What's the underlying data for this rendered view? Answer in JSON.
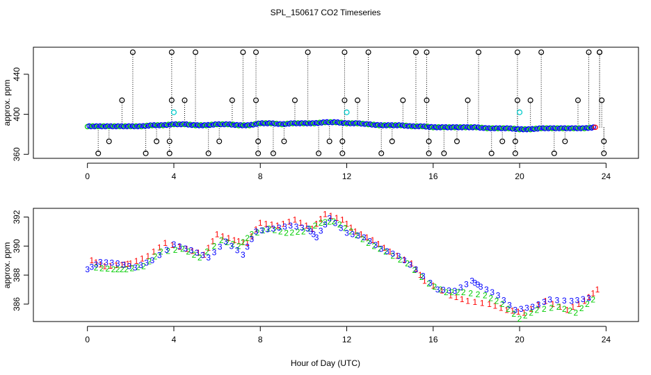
{
  "chart_data": {
    "title": "SPL_150617  CO2 Timeseries",
    "xlabel": "Hour of Day (UTC)",
    "colors": {
      "c1": "#ff0000",
      "c2": "#00cc00",
      "c3": "#0000ff",
      "open_circle": "#000000",
      "cyan_point": "#00cccc"
    },
    "panels": [
      {
        "type": "scatter",
        "ylabel": "approx. ppm",
        "xlim": [
          -2.5,
          25.5
        ],
        "ylim": [
          356,
          467
        ],
        "xticks": [
          "0",
          "4",
          "8",
          "12",
          "16",
          "20",
          "24"
        ],
        "yticks": [
          "360",
          "400",
          "440"
        ],
        "grid": false,
        "series_main": [
          [
            0.0,
            388
          ],
          [
            0.5,
            388
          ],
          [
            1.0,
            388
          ],
          [
            1.5,
            388
          ],
          [
            2.0,
            388
          ],
          [
            2.5,
            388
          ],
          [
            3.0,
            389
          ],
          [
            3.5,
            389
          ],
          [
            4.0,
            390
          ],
          [
            4.5,
            390
          ],
          [
            5.0,
            389
          ],
          [
            5.5,
            389
          ],
          [
            6.0,
            390
          ],
          [
            6.5,
            390
          ],
          [
            7.0,
            389
          ],
          [
            7.5,
            389
          ],
          [
            8.0,
            391
          ],
          [
            8.5,
            391
          ],
          [
            9.0,
            390
          ],
          [
            9.5,
            391
          ],
          [
            10.0,
            391
          ],
          [
            10.5,
            391
          ],
          [
            11.0,
            392
          ],
          [
            11.5,
            392
          ],
          [
            12.0,
            391
          ],
          [
            12.5,
            391
          ],
          [
            13.0,
            390
          ],
          [
            13.5,
            389
          ],
          [
            14.0,
            389
          ],
          [
            14.5,
            389
          ],
          [
            15.0,
            388
          ],
          [
            15.5,
            388
          ],
          [
            16.0,
            387
          ],
          [
            16.5,
            387
          ],
          [
            17.0,
            387
          ],
          [
            17.5,
            387
          ],
          [
            18.0,
            387
          ],
          [
            18.5,
            386
          ],
          [
            19.0,
            386
          ],
          [
            19.5,
            386
          ],
          [
            20.0,
            385
          ],
          [
            20.5,
            385
          ],
          [
            21.0,
            386
          ],
          [
            21.5,
            386
          ],
          [
            22.0,
            386
          ],
          [
            22.5,
            386
          ],
          [
            23.0,
            386
          ],
          [
            23.5,
            387
          ]
        ],
        "outliers": [
          [
            0.5,
            361
          ],
          [
            1.0,
            373
          ],
          [
            1.6,
            414
          ],
          [
            2.1,
            462
          ],
          [
            2.7,
            361
          ],
          [
            3.2,
            373
          ],
          [
            3.8,
            361
          ],
          [
            3.8,
            373
          ],
          [
            3.9,
            414
          ],
          [
            3.9,
            462
          ],
          [
            4.5,
            414
          ],
          [
            5.0,
            462
          ],
          [
            5.6,
            361
          ],
          [
            6.1,
            373
          ],
          [
            6.7,
            414
          ],
          [
            7.2,
            462
          ],
          [
            7.8,
            462
          ],
          [
            7.8,
            414
          ],
          [
            7.9,
            373
          ],
          [
            7.9,
            361
          ],
          [
            8.6,
            361
          ],
          [
            9.1,
            373
          ],
          [
            9.6,
            414
          ],
          [
            10.2,
            462
          ],
          [
            10.7,
            361
          ],
          [
            11.2,
            373
          ],
          [
            11.8,
            361
          ],
          [
            11.8,
            373
          ],
          [
            11.9,
            414
          ],
          [
            11.9,
            462
          ],
          [
            12.5,
            414
          ],
          [
            13.0,
            462
          ],
          [
            13.6,
            361
          ],
          [
            14.1,
            373
          ],
          [
            14.6,
            414
          ],
          [
            15.2,
            462
          ],
          [
            15.7,
            462
          ],
          [
            15.7,
            414
          ],
          [
            15.8,
            373
          ],
          [
            15.8,
            361
          ],
          [
            16.5,
            361
          ],
          [
            17.1,
            373
          ],
          [
            17.6,
            414
          ],
          [
            18.1,
            462
          ],
          [
            18.7,
            361
          ],
          [
            19.2,
            373
          ],
          [
            19.8,
            361
          ],
          [
            19.8,
            373
          ],
          [
            19.9,
            414
          ],
          [
            19.9,
            462
          ],
          [
            20.5,
            414
          ],
          [
            21.0,
            462
          ],
          [
            21.6,
            361
          ],
          [
            22.1,
            373
          ],
          [
            22.7,
            414
          ],
          [
            23.2,
            462
          ],
          [
            23.7,
            462
          ],
          [
            23.7,
            462
          ],
          [
            23.8,
            414
          ],
          [
            23.9,
            373
          ],
          [
            23.9,
            361
          ]
        ],
        "cyan_points": [
          [
            4.0,
            402
          ],
          [
            12.0,
            402
          ],
          [
            20.0,
            402
          ]
        ]
      },
      {
        "type": "scatter",
        "ylabel": "approx. ppm",
        "xlim": [
          -2.5,
          25.5
        ],
        "ylim": [
          384.8,
          392.6
        ],
        "xticks": [
          "0",
          "4",
          "8",
          "12",
          "16",
          "20",
          "24"
        ],
        "yticks": [
          "386",
          "388",
          "390",
          "392"
        ],
        "grid": false,
        "series": [
          {
            "marker": "1",
            "values": [
              [
                0.2,
                389.0
              ],
              [
                0.8,
                388.6
              ],
              [
                1.6,
                388.7
              ],
              [
                2.0,
                388.8
              ],
              [
                2.8,
                389.3
              ],
              [
                3.6,
                390.2
              ],
              [
                4.6,
                389.8
              ],
              [
                5.4,
                389.4
              ],
              [
                6.0,
                390.8
              ],
              [
                6.8,
                390.4
              ],
              [
                7.4,
                390.2
              ],
              [
                8.0,
                391.6
              ],
              [
                8.8,
                391.4
              ],
              [
                9.6,
                391.8
              ],
              [
                10.4,
                391.2
              ],
              [
                11.0,
                392.2
              ],
              [
                11.8,
                391.8
              ],
              [
                12.4,
                391.0
              ],
              [
                13.2,
                390.4
              ],
              [
                14.0,
                389.6
              ],
              [
                15.0,
                388.8
              ],
              [
                15.6,
                387.6
              ],
              [
                16.8,
                386.6
              ],
              [
                17.6,
                386.2
              ],
              [
                18.6,
                386.0
              ],
              [
                19.4,
                385.6
              ],
              [
                20.2,
                385.4
              ],
              [
                21.2,
                386.2
              ],
              [
                22.2,
                385.6
              ],
              [
                23.0,
                386.2
              ],
              [
                23.6,
                387.0
              ]
            ]
          },
          {
            "marker": "2",
            "values": [
              [
                0.4,
                388.5
              ],
              [
                1.2,
                388.4
              ],
              [
                1.8,
                388.4
              ],
              [
                2.6,
                388.6
              ],
              [
                3.4,
                389.6
              ],
              [
                4.4,
                389.8
              ],
              [
                5.2,
                389.2
              ],
              [
                6.2,
                390.4
              ],
              [
                7.0,
                390.0
              ],
              [
                7.6,
                390.8
              ],
              [
                8.4,
                391.2
              ],
              [
                9.2,
                390.9
              ],
              [
                10.0,
                391.0
              ],
              [
                10.8,
                391.6
              ],
              [
                11.4,
                391.7
              ],
              [
                12.2,
                391.0
              ],
              [
                13.0,
                390.2
              ],
              [
                13.8,
                389.6
              ],
              [
                14.8,
                388.8
              ],
              [
                15.8,
                387.4
              ],
              [
                16.6,
                386.8
              ],
              [
                17.4,
                386.8
              ],
              [
                18.4,
                386.6
              ],
              [
                19.2,
                386.0
              ],
              [
                20.0,
                385.0
              ],
              [
                20.8,
                385.6
              ],
              [
                21.8,
                385.8
              ],
              [
                22.6,
                385.4
              ],
              [
                23.4,
                386.3
              ]
            ]
          },
          {
            "marker": "3",
            "values": [
              [
                0.0,
                388.4
              ],
              [
                0.6,
                388.9
              ],
              [
                1.4,
                388.8
              ],
              [
                2.2,
                388.5
              ],
              [
                3.0,
                389.0
              ],
              [
                4.0,
                390.1
              ],
              [
                4.8,
                389.7
              ],
              [
                5.6,
                389.2
              ],
              [
                6.4,
                390.3
              ],
              [
                7.2,
                389.4
              ],
              [
                7.8,
                391.0
              ],
              [
                8.6,
                391.2
              ],
              [
                9.4,
                391.4
              ],
              [
                10.2,
                391.2
              ],
              [
                10.6,
                390.6
              ],
              [
                11.2,
                391.9
              ],
              [
                12.0,
                390.9
              ],
              [
                12.8,
                390.6
              ],
              [
                13.6,
                389.8
              ],
              [
                14.4,
                389.3
              ],
              [
                15.2,
                388.4
              ],
              [
                16.2,
                387.0
              ],
              [
                17.0,
                386.9
              ],
              [
                17.8,
                387.6
              ],
              [
                18.2,
                387.2
              ],
              [
                19.0,
                386.6
              ],
              [
                19.8,
                385.6
              ],
              [
                20.6,
                385.8
              ],
              [
                21.4,
                386.3
              ],
              [
                22.4,
                386.2
              ],
              [
                23.2,
                386.4
              ]
            ]
          }
        ]
      }
    ]
  }
}
